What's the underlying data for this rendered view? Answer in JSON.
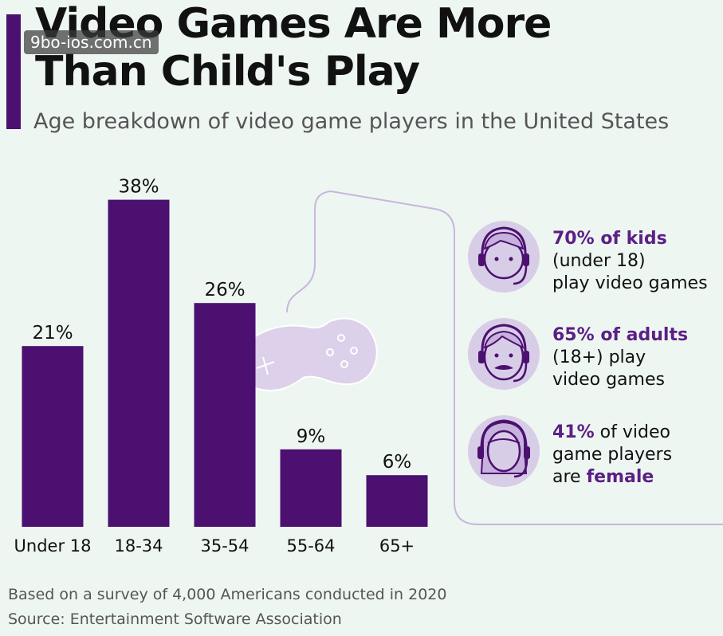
{
  "header": {
    "title_line1": "Video Games Are More",
    "title_line2": "Than Child's Play",
    "subtitle": "Age breakdown of video game players in the United States",
    "watermark": "9bo-ios.com.cn"
  },
  "chart_data": {
    "type": "bar",
    "categories": [
      "Under 18",
      "18-34",
      "35-54",
      "55-64",
      "65+"
    ],
    "values": [
      21,
      38,
      26,
      9,
      6
    ],
    "value_labels": [
      "21%",
      "38%",
      "26%",
      "9%",
      "6%"
    ],
    "title": "Video Games Are More Than Child's Play",
    "subtitle": "Age breakdown of video game players in the United States",
    "ylim": [
      0,
      40
    ],
    "grid": false,
    "bar_color": "#4b1070"
  },
  "stats": [
    {
      "icon": "kid-headset-icon",
      "highlight": "70% of kids",
      "line2": "(under 18)",
      "line3": "play video games"
    },
    {
      "icon": "adult-headset-icon",
      "highlight": "65% of adults",
      "line2": "(18+) play",
      "line3": "video games"
    },
    {
      "icon": "female-headset-icon",
      "highlight": "41%",
      "line1_rest": " of video",
      "line2": "game players",
      "line3_pre": "are ",
      "line3_highlight": "female"
    }
  ],
  "footer": {
    "note": "Based on a survey of 4,000 Americans conducted in 2020",
    "source": "Source: Entertainment Software Association"
  },
  "colors": {
    "background": "#eef6f2",
    "bar": "#4b1070",
    "accent_text": "#5b1f86",
    "icon_circle": "#d8cde6",
    "icon_stroke": "#4b1070",
    "controller_fill": "#ddd0ea"
  }
}
